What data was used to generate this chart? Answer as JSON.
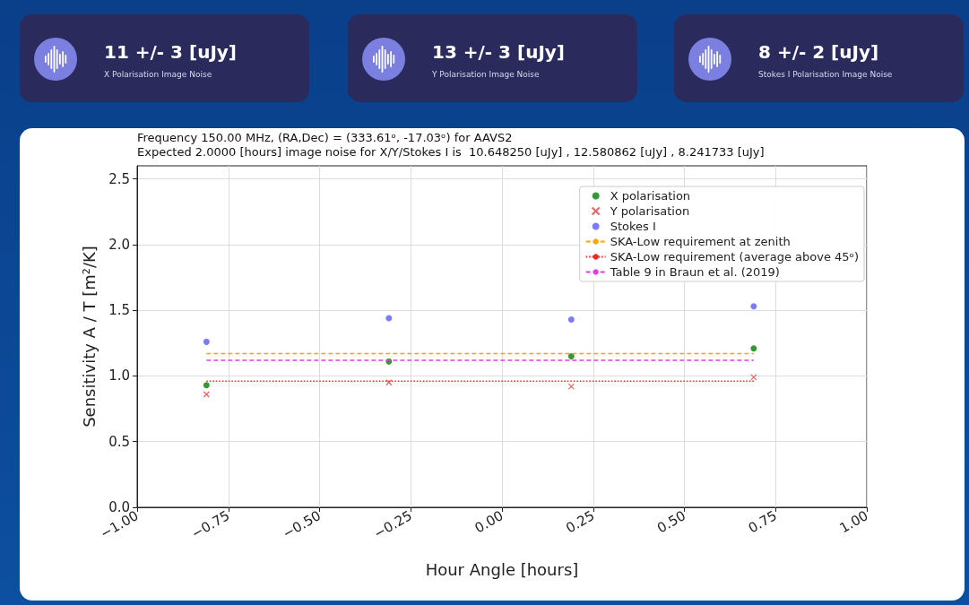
{
  "chart_data": [
    {
      "type": "other",
      "title": "11 +/- 3 [uJy]",
      "subtitle": "X Polarisation Image Noise"
    },
    {
      "type": "other",
      "title": "13 +/- 3 [uJy]",
      "subtitle": "Y Polarisation Image Noise"
    },
    {
      "type": "other",
      "title": "8 +/- 2 [uJy]",
      "subtitle": "Stokes I Polarisation Image Noise"
    },
    {
      "type": "scatter",
      "title": "Frequency 150.00 MHz, (RA,Dec) = (333.61ᵒ, -17.03ᵒ) for AAVS2",
      "subtitle": "Expected 2.0000 [hours] image noise for X/Y/Stokes I is  10.648250 [uJy] , 12.580862 [uJy] , 8.241733 [uJy]",
      "xlabel": "Hour Angle [hours]",
      "ylabel": "Sensitivity A / T [m²/K]",
      "xlim": [
        -1,
        1
      ],
      "ylim": [
        0,
        2.6
      ],
      "xticks": [
        {
          "value": -1,
          "label": "−1.00"
        },
        {
          "value": -0.75,
          "label": "−0.75"
        },
        {
          "value": -0.5,
          "label": "−0.50"
        },
        {
          "value": -0.25,
          "label": "−0.25"
        },
        {
          "value": 0,
          "label": "0.00"
        },
        {
          "value": 0.25,
          "label": "0.25"
        },
        {
          "value": 0.5,
          "label": "0.50"
        },
        {
          "value": 0.75,
          "label": "0.75"
        },
        {
          "value": 1,
          "label": "1.00"
        }
      ],
      "yticks": [
        {
          "value": 0,
          "label": "0.0"
        },
        {
          "value": 0.5,
          "label": "0.5"
        },
        {
          "value": 1,
          "label": "1.0"
        },
        {
          "value": 1.5,
          "label": "1.5"
        },
        {
          "value": 2,
          "label": "2.0"
        },
        {
          "value": 2.5,
          "label": "2.5"
        }
      ],
      "grid": true,
      "legend": "top right",
      "series": [
        {
          "name": "X polarisation",
          "type": "scatter",
          "marker": "circle",
          "color": "#008000",
          "x": [
            -0.81,
            -0.31,
            0.19,
            0.69
          ],
          "values": [
            0.93,
            1.11,
            1.15,
            1.21
          ]
        },
        {
          "name": "Y polarisation",
          "type": "scatter",
          "marker": "cross",
          "color": "#e8383d",
          "x": [
            -0.81,
            -0.31,
            0.19,
            0.69
          ],
          "values": [
            0.86,
            0.95,
            0.92,
            0.99
          ]
        },
        {
          "name": "Stokes I",
          "type": "scatter",
          "marker": "circle",
          "color": "#5a5aff",
          "x": [
            -0.81,
            -0.31,
            0.19,
            0.69
          ],
          "values": [
            1.26,
            1.44,
            1.43,
            1.53
          ]
        },
        {
          "name": "SKA-Low requirement at zenith",
          "type": "line",
          "line_style": "dashed",
          "marker": "none",
          "color": "#ffa500",
          "x": [
            -0.81,
            0.69
          ],
          "values": [
            1.17,
            1.17
          ]
        },
        {
          "name": "SKA-Low requirement (average above 45ᵒ)",
          "type": "line",
          "line_style": "dotted",
          "marker": "none",
          "color": "#ff2020",
          "x": [
            -0.81,
            0.69
          ],
          "values": [
            0.96,
            0.96
          ]
        },
        {
          "name": "Table 9 in Braun et al. (2019)",
          "type": "line",
          "line_style": "dashed",
          "marker": "none",
          "color": "#e040e0",
          "x": [
            -0.81,
            0.69
          ],
          "values": [
            1.12,
            1.12
          ]
        }
      ]
    }
  ]
}
